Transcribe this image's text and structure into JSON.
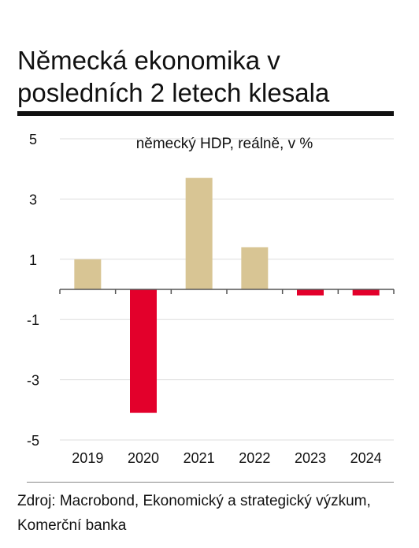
{
  "chart_data": {
    "type": "bar",
    "title": "Německá ekonomika v posledních 2 letech klesala",
    "subtitle": "německý HDP, reálně, v %",
    "categories": [
      "2019",
      "2020",
      "2021",
      "2022",
      "2023",
      "2024"
    ],
    "values": [
      1.0,
      -4.1,
      3.7,
      1.4,
      -0.2,
      -0.2
    ],
    "ylim": [
      -5,
      5
    ],
    "yticks": [
      5,
      3,
      1,
      -1,
      -3,
      -5
    ],
    "ytick_labels": [
      "5",
      "3",
      "1",
      "-1",
      "-3",
      "-5"
    ],
    "grid": true,
    "colors": {
      "positive": "#d8c594",
      "negative": "#e3002b"
    }
  },
  "source": "Zdroj: Macrobond, Ekonomický a strategický výzkum, Komerční banka"
}
